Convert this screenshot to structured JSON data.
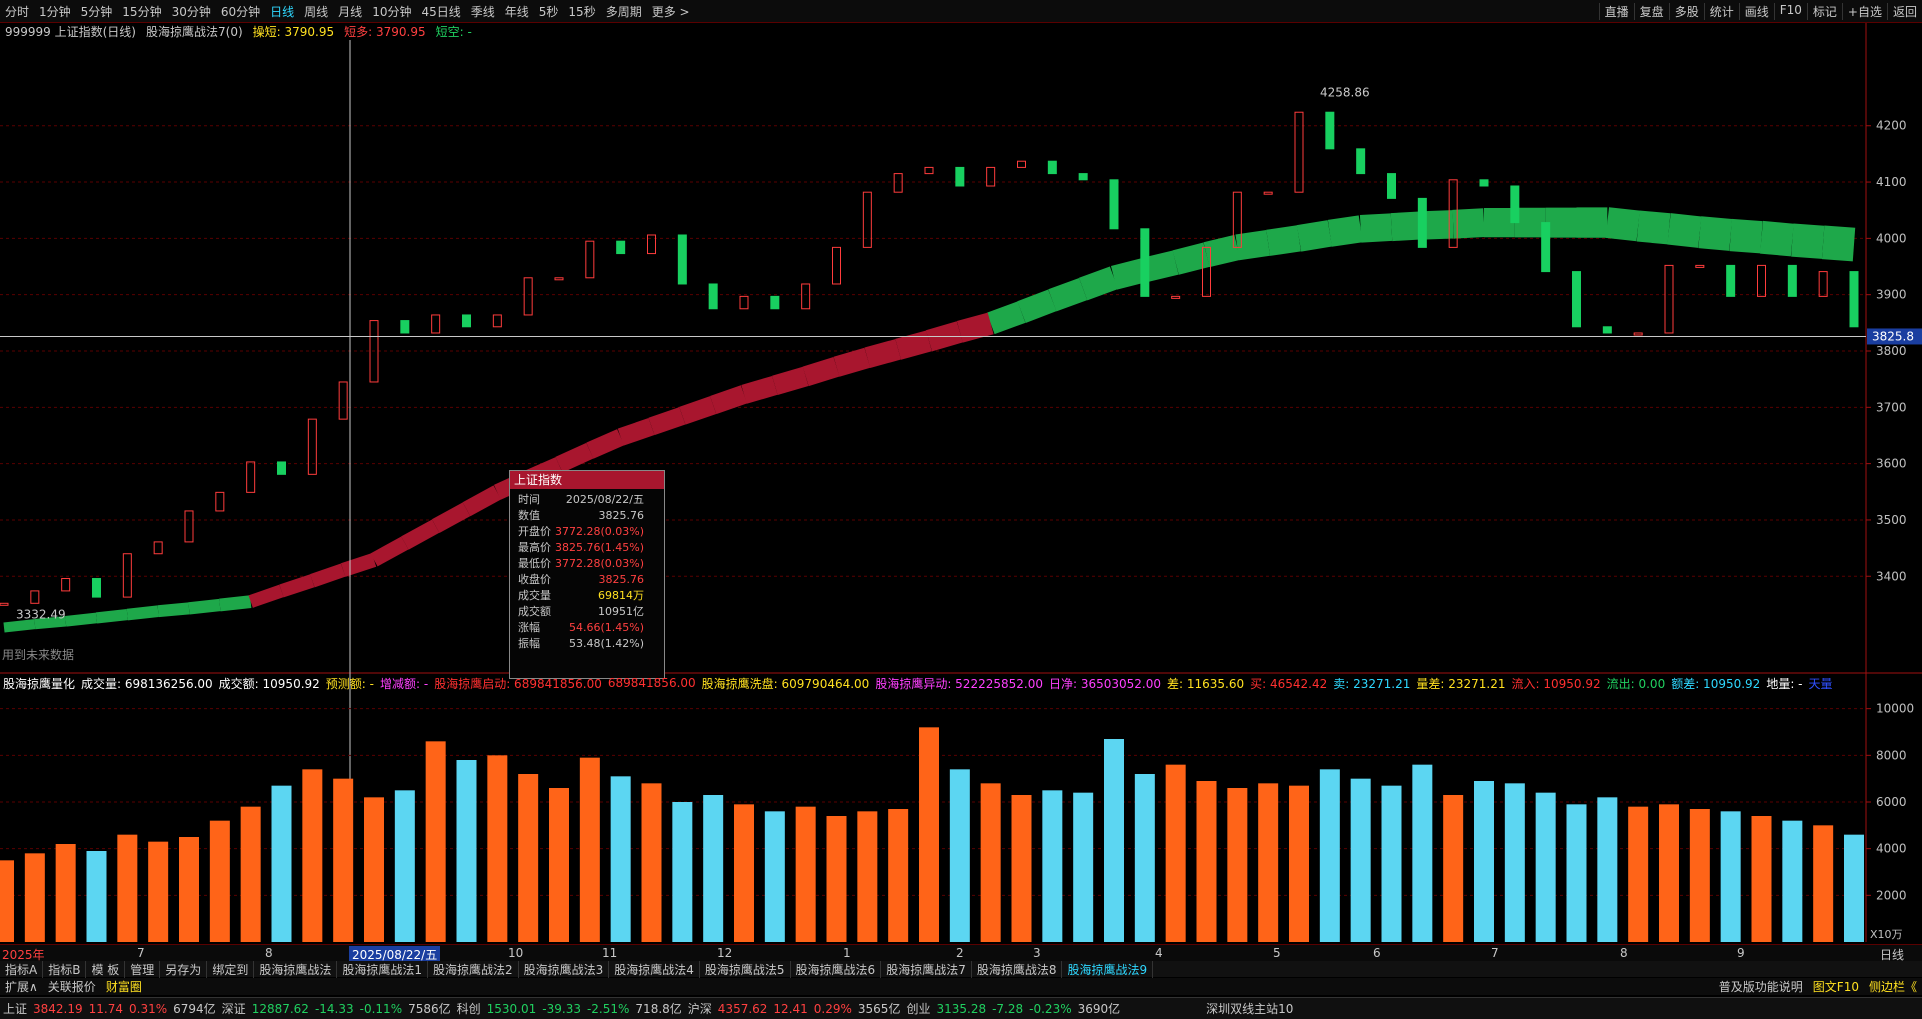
{
  "toolbar": {
    "left": [
      "分时",
      "1分钟",
      "5分钟",
      "15分钟",
      "30分钟",
      "60分钟",
      "日线",
      "周线",
      "月线",
      "10分钟",
      "45日线",
      "季线",
      "年线",
      "5秒",
      "15秒",
      "多周期",
      "更多 >"
    ],
    "right": [
      "直播",
      "复盘",
      "多股",
      "统计",
      "画线",
      "F10",
      "标记",
      "+自选",
      "返回"
    ]
  },
  "main_chart": {
    "symbol": "999999 上证指数(日线)",
    "indicator": "股海掠鹰战法7(0)",
    "items": [
      "操短: 3790.95",
      "短多: 3790.95",
      "短空: -"
    ],
    "ylim": [
      3230,
      4370
    ],
    "yticks": [
      3400,
      3500,
      3600,
      3700,
      3800,
      3900,
      4000,
      4100,
      4200
    ],
    "grid": true,
    "closes": [
      3352,
      3374,
      3396,
      3363,
      3440,
      3461,
      3516,
      3549,
      3603,
      3581,
      3679,
      3745,
      3854,
      3832,
      3864,
      3843,
      3864,
      3930,
      3930,
      3995,
      3973,
      4006,
      3919,
      3875,
      3897,
      3875,
      3919,
      3984,
      4082,
      4115,
      4126,
      4093,
      4126,
      4137,
      4115,
      4104,
      4017,
      3897,
      3897,
      3984,
      4082,
      4082,
      4224,
      4159,
      4115,
      4071,
      3984,
      4104,
      4093,
      4028,
      3941,
      3843,
      3832,
      3832,
      3952,
      3952,
      3897,
      3952,
      3897,
      3941,
      3843
    ],
    "up_color": "#ff3c3c",
    "down_color": "#18d060",
    "ma_series": [
      {
        "color": "#1ea84a",
        "values": [
          3309,
          3315,
          3320,
          3326,
          3332,
          3338,
          3343,
          3349,
          3355,
          null,
          null,
          null,
          null,
          null,
          null,
          null,
          null,
          null,
          null,
          null,
          null,
          null,
          null,
          null,
          null,
          null,
          null,
          null,
          null,
          null,
          null,
          null,
          3849,
          3869,
          3890,
          3910,
          3930,
          3944,
          3957,
          3971,
          3984,
          3992,
          4000,
          4009,
          4017,
          4020,
          4023,
          4025,
          4028,
          4028,
          4028,
          4028,
          4028,
          4022,
          4017,
          4011,
          4006,
          4002,
          3997,
          3993,
          3989
        ]
      },
      {
        "color": "#a8162e",
        "values": [
          null,
          null,
          null,
          null,
          null,
          null,
          null,
          null,
          3355,
          3374,
          3392,
          3411,
          3429,
          3459,
          3489,
          3519,
          3549,
          3574,
          3598,
          3623,
          3647,
          3666,
          3685,
          3704,
          3723,
          3739,
          3755,
          3772,
          3788,
          3803,
          3818,
          3834,
          3849,
          null,
          null,
          null,
          null,
          null,
          null,
          null,
          null,
          null,
          null,
          null,
          null,
          null,
          null,
          null,
          null,
          null,
          null,
          null,
          null,
          null,
          null,
          null,
          null,
          null,
          null,
          null,
          null
        ]
      }
    ],
    "high_mark": 4258.86,
    "low_mark": 3332.49,
    "cursor_value": 3825.8,
    "note": "用到未来数据"
  },
  "tooltip": {
    "title": "上证指数",
    "rows": [
      [
        "时间",
        "2025/08/22/五"
      ],
      [
        "数值",
        "3825.76"
      ],
      [
        "开盘价",
        "3772.28(0.03%)"
      ],
      [
        "最高价",
        "3825.76(1.45%)"
      ],
      [
        "最低价",
        "3772.28(0.03%)"
      ],
      [
        "收盘价",
        "3825.76"
      ],
      [
        "成交量",
        "69814万"
      ],
      [
        "成交额",
        "10951亿"
      ],
      [
        "涨幅",
        "54.66(1.45%)"
      ],
      [
        "振幅",
        "53.48(1.42%)"
      ]
    ]
  },
  "volume_chart": {
    "items": [
      "股海掠鹰量化",
      "成交量: 698136256.00",
      "成交额: 10950.92",
      "预测额: -",
      "增减额: -",
      "股海掠鹰启动: 689841856.00",
      "689841856.00",
      "股海掠鹰洗盘: 609790464.00",
      "股海掠鹰异动: 522225852.00",
      "日净: 36503052.00",
      "差: 11635.60",
      "买: 46542.42",
      "卖: 23271.21",
      "量差: 23271.21",
      "流入: 10950.92",
      "流出: 0.00",
      "额差: 10950.92",
      "地量: -",
      "天量"
    ],
    "unit": "X10万",
    "ylim": [
      0,
      10800
    ],
    "yticks": [
      2000,
      4000,
      6000,
      8000,
      10000
    ],
    "up_color": "#ff6418",
    "down_color": "#5cd6f2",
    "values": [
      3500,
      3800,
      4200,
      3900,
      4600,
      4300,
      4500,
      5200,
      5800,
      6700,
      7400,
      7000,
      6200,
      6500,
      8600,
      7800,
      8000,
      7200,
      6600,
      7900,
      7100,
      6800,
      6000,
      6300,
      5900,
      5600,
      5800,
      5400,
      5600,
      5700,
      9200,
      7400,
      6800,
      6300,
      6500,
      6400,
      8700,
      7200,
      7600,
      6900,
      6600,
      6800,
      6700,
      7400,
      7000,
      6700,
      7600,
      6300,
      6900,
      6800,
      6400,
      5900,
      6200,
      5800,
      5900,
      5700,
      5600,
      5400,
      5200,
      5000,
      4600
    ]
  },
  "date_axis": {
    "labels": [
      "2025年",
      "7",
      "8",
      "2025/08/22/五",
      "10",
      "11",
      "12",
      "1",
      "2",
      "3",
      "4",
      "5",
      "6",
      "7",
      "8",
      "9"
    ],
    "period": "日线"
  },
  "tabs": [
    "指标A",
    "指标B",
    "模 板",
    "管理",
    "另存为",
    "绑定到",
    "股海掠鹰战法",
    "股海掠鹰战法1",
    "股海掠鹰战法2",
    "股海掠鹰战法3",
    "股海掠鹰战法4",
    "股海掠鹰战法5",
    "股海掠鹰战法6",
    "股海掠鹰战法7",
    "股海掠鹰战法8",
    "股海掠鹰战法9"
  ],
  "bottom_bar": {
    "left": [
      "扩展∧",
      "关联报价",
      "财富圈"
    ],
    "right": [
      "普及版功能说明",
      "图文F10",
      "侧边栏《"
    ]
  },
  "status": {
    "groups": [
      [
        "上证",
        "3842.19",
        "11.74",
        "0.31%",
        "6794亿"
      ],
      [
        "深证",
        "12887.62",
        "-14.33",
        "-0.11%",
        "7586亿"
      ],
      [
        "科创",
        "1530.01",
        "-39.33",
        "-2.51%",
        "718.8亿"
      ],
      [
        "沪深",
        "4357.62",
        "12.41",
        "0.29%",
        "3565亿"
      ],
      [
        "创业",
        "3135.28",
        "-7.28",
        "-0.23%",
        "3690亿"
      ]
    ],
    "server": "深圳双线主站10"
  }
}
